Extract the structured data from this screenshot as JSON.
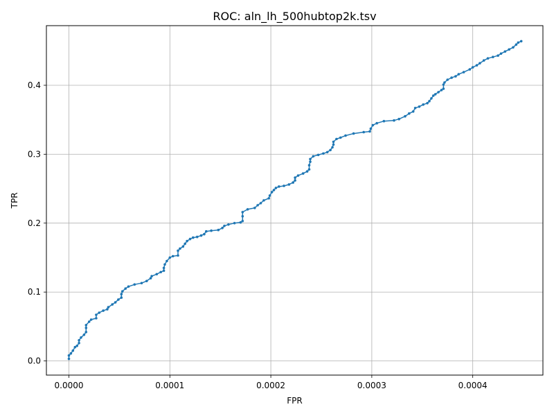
{
  "chart_data": {
    "type": "line",
    "title": "ROC: aln_lh_500hubtop2k.tsv",
    "xlabel": "FPR",
    "ylabel": "TPR",
    "xlim": [
      -2.23e-05,
      0.0004695
    ],
    "ylim": [
      -0.0205,
      0.4865
    ],
    "grid": true,
    "xticks": [
      0.0,
      0.0001,
      0.0002,
      0.0003,
      0.0004
    ],
    "xtick_labels": [
      "0.0000",
      "0.0001",
      "0.0002",
      "0.0003",
      "0.0004"
    ],
    "yticks": [
      0.0,
      0.1,
      0.2,
      0.3,
      0.4
    ],
    "ytick_labels": [
      "0.0",
      "0.1",
      "0.2",
      "0.3",
      "0.4"
    ],
    "colors": {
      "series": "#1f77b4",
      "grid": "#b0b0b0"
    },
    "series": [
      {
        "marker": "circle",
        "points": [
          [
            0.0,
            0.003
          ],
          [
            0.0,
            0.008
          ],
          [
            2e-06,
            0.011
          ],
          [
            4e-06,
            0.015
          ],
          [
            6e-06,
            0.02
          ],
          [
            8e-06,
            0.022
          ],
          [
            1e-05,
            0.026
          ],
          [
            1e-05,
            0.03
          ],
          [
            1.2e-05,
            0.034
          ],
          [
            1.5e-05,
            0.038
          ],
          [
            1.7e-05,
            0.042
          ],
          [
            1.7e-05,
            0.048
          ],
          [
            1.7e-05,
            0.052
          ],
          [
            2e-05,
            0.057
          ],
          [
            2.2e-05,
            0.06
          ],
          [
            2.7e-05,
            0.062
          ],
          [
            2.7e-05,
            0.067
          ],
          [
            3e-05,
            0.07
          ],
          [
            3.4e-05,
            0.073
          ],
          [
            3.8e-05,
            0.075
          ],
          [
            3.9e-05,
            0.078
          ],
          [
            4.3e-05,
            0.082
          ],
          [
            4.6e-05,
            0.085
          ],
          [
            4.9e-05,
            0.089
          ],
          [
            5.2e-05,
            0.092
          ],
          [
            5.2e-05,
            0.097
          ],
          [
            5.3e-05,
            0.101
          ],
          [
            5.6e-05,
            0.105
          ],
          [
            5.9e-05,
            0.108
          ],
          [
            6.5e-05,
            0.111
          ],
          [
            7.2e-05,
            0.113
          ],
          [
            7.7e-05,
            0.116
          ],
          [
            8.1e-05,
            0.12
          ],
          [
            8.2e-05,
            0.123
          ],
          [
            8.7e-05,
            0.126
          ],
          [
            9.1e-05,
            0.129
          ],
          [
            9.4e-05,
            0.131
          ],
          [
            9.4e-05,
            0.135
          ],
          [
            9.5e-05,
            0.14
          ],
          [
            9.7e-05,
            0.145
          ],
          [
            0.0001,
            0.15
          ],
          [
            0.000103,
            0.152
          ],
          [
            0.000108,
            0.153
          ],
          [
            0.000108,
            0.16
          ],
          [
            0.00011,
            0.163
          ],
          [
            0.000113,
            0.166
          ],
          [
            0.000115,
            0.17
          ],
          [
            0.000117,
            0.174
          ],
          [
            0.00012,
            0.177
          ],
          [
            0.000123,
            0.179
          ],
          [
            0.000127,
            0.18
          ],
          [
            0.000131,
            0.182
          ],
          [
            0.000134,
            0.184
          ],
          [
            0.000136,
            0.188
          ],
          [
            0.000141,
            0.189
          ],
          [
            0.000148,
            0.19
          ],
          [
            0.000152,
            0.193
          ],
          [
            0.000154,
            0.196
          ],
          [
            0.000158,
            0.198
          ],
          [
            0.000164,
            0.2
          ],
          [
            0.00017,
            0.201
          ],
          [
            0.000172,
            0.203
          ],
          [
            0.000172,
            0.21
          ],
          [
            0.000172,
            0.216
          ],
          [
            0.000177,
            0.22
          ],
          [
            0.000184,
            0.222
          ],
          [
            0.000187,
            0.226
          ],
          [
            0.00019,
            0.229
          ],
          [
            0.000193,
            0.233
          ],
          [
            0.000198,
            0.236
          ],
          [
            0.000199,
            0.24
          ],
          [
            0.000201,
            0.245
          ],
          [
            0.000203,
            0.248
          ],
          [
            0.000205,
            0.251
          ],
          [
            0.000208,
            0.253
          ],
          [
            0.000213,
            0.254
          ],
          [
            0.000218,
            0.256
          ],
          [
            0.000222,
            0.259
          ],
          [
            0.000224,
            0.262
          ],
          [
            0.000224,
            0.266
          ],
          [
            0.000227,
            0.269
          ],
          [
            0.000232,
            0.272
          ],
          [
            0.000236,
            0.275
          ],
          [
            0.000238,
            0.278
          ],
          [
            0.000238,
            0.284
          ],
          [
            0.000239,
            0.289
          ],
          [
            0.000239,
            0.293
          ],
          [
            0.000242,
            0.297
          ],
          [
            0.000247,
            0.299
          ],
          [
            0.000252,
            0.301
          ],
          [
            0.000256,
            0.303
          ],
          [
            0.000259,
            0.306
          ],
          [
            0.000261,
            0.31
          ],
          [
            0.000262,
            0.314
          ],
          [
            0.000262,
            0.318
          ],
          [
            0.000265,
            0.322
          ],
          [
            0.000269,
            0.324
          ],
          [
            0.000274,
            0.327
          ],
          [
            0.000282,
            0.33
          ],
          [
            0.000292,
            0.332
          ],
          [
            0.000298,
            0.333
          ],
          [
            0.000299,
            0.337
          ],
          [
            0.000301,
            0.342
          ],
          [
            0.000305,
            0.345
          ],
          [
            0.000312,
            0.348
          ],
          [
            0.000322,
            0.349
          ],
          [
            0.000327,
            0.351
          ],
          [
            0.000333,
            0.355
          ],
          [
            0.000337,
            0.359
          ],
          [
            0.000341,
            0.362
          ],
          [
            0.000343,
            0.367
          ],
          [
            0.000347,
            0.369
          ],
          [
            0.000351,
            0.372
          ],
          [
            0.000355,
            0.374
          ],
          [
            0.000357,
            0.377
          ],
          [
            0.000359,
            0.381
          ],
          [
            0.000361,
            0.385
          ],
          [
            0.000363,
            0.387
          ],
          [
            0.000366,
            0.39
          ],
          [
            0.000369,
            0.393
          ],
          [
            0.000371,
            0.395
          ],
          [
            0.000371,
            0.401
          ],
          [
            0.000372,
            0.404
          ],
          [
            0.000375,
            0.408
          ],
          [
            0.000379,
            0.411
          ],
          [
            0.000383,
            0.413
          ],
          [
            0.000386,
            0.416
          ],
          [
            0.000391,
            0.419
          ],
          [
            0.000397,
            0.423
          ],
          [
            0.0004,
            0.426
          ],
          [
            0.000404,
            0.429
          ],
          [
            0.000407,
            0.432
          ],
          [
            0.000411,
            0.436
          ],
          [
            0.000415,
            0.439
          ],
          [
            0.00042,
            0.441
          ],
          [
            0.000425,
            0.443
          ],
          [
            0.000428,
            0.446
          ],
          [
            0.000432,
            0.449
          ],
          [
            0.000436,
            0.452
          ],
          [
            0.00044,
            0.455
          ],
          [
            0.000443,
            0.459
          ],
          [
            0.000445,
            0.462
          ],
          [
            0.000448,
            0.464
          ]
        ]
      }
    ]
  }
}
